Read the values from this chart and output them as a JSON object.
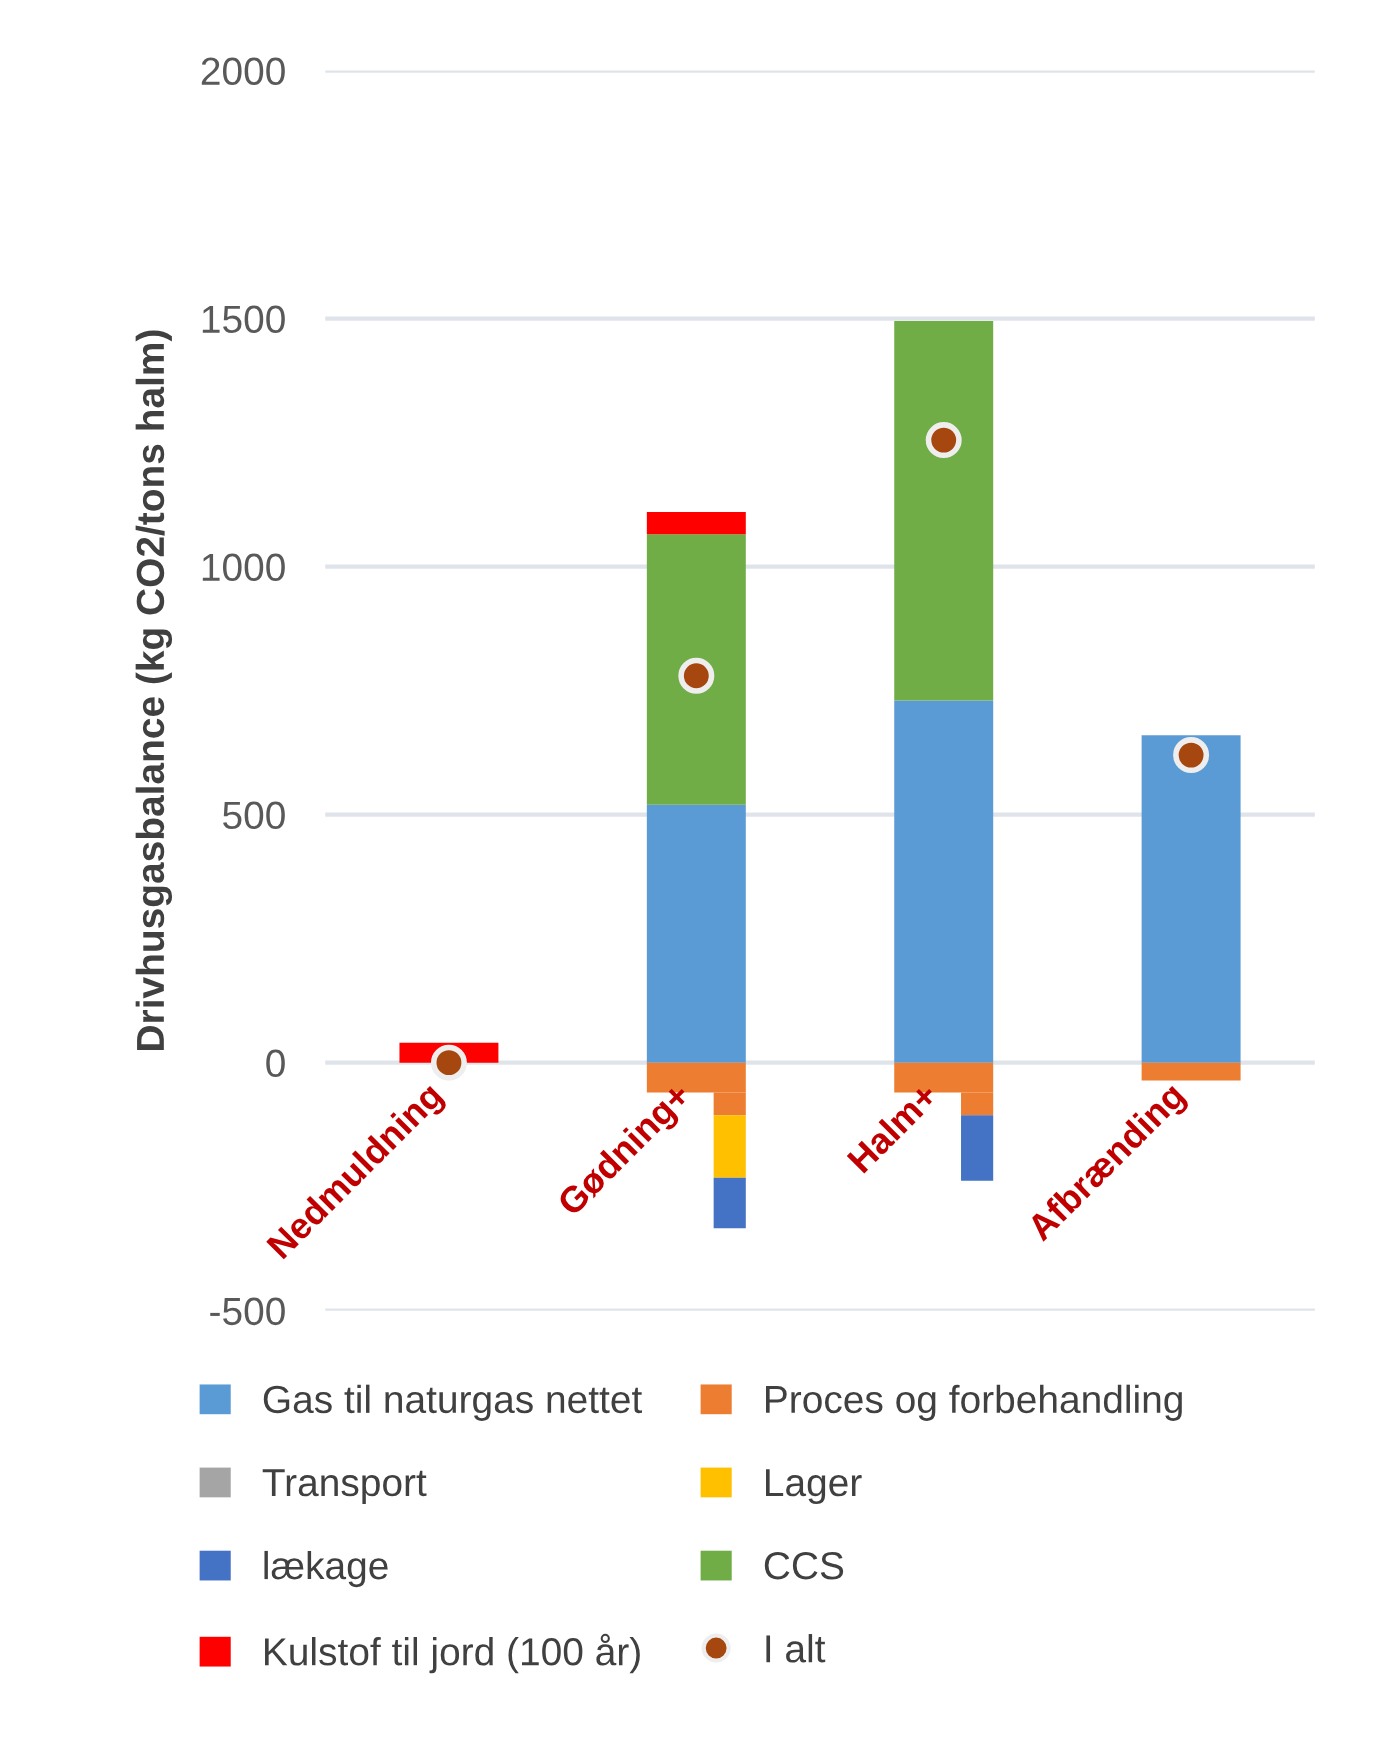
{
  "chart_data": {
    "type": "bar",
    "stacked": true,
    "ylabel": "Drivhusgasbalance (kg CO2/tons halm)",
    "categories": [
      "Nedmuldning",
      "Gødning+",
      "Halm+",
      "Afbrænding"
    ],
    "series": [
      {
        "name": "Gas til naturgas nettet",
        "color": "#5b9bd5",
        "values": [
          null,
          520,
          730,
          660
        ]
      },
      {
        "name": "Proces og forbehandling",
        "color": "#ed7d31",
        "values": [
          null,
          -60,
          -60,
          -36
        ]
      },
      {
        "color": "#ed7d31",
        "values": [
          null,
          -46,
          -46,
          null
        ]
      },
      {
        "name": "Transport",
        "color": "#a5a5a5",
        "values": [
          null,
          null,
          null,
          null
        ]
      },
      {
        "name": "Lager",
        "color": "#ffc000",
        "values": [
          null,
          -126,
          null,
          null
        ]
      },
      {
        "name": "lækage",
        "color": "#4472c4",
        "values": [
          null,
          -102,
          -132,
          null
        ]
      },
      {
        "name": "CCS",
        "color": "#70ad47",
        "values": [
          null,
          545,
          765,
          null
        ]
      },
      {
        "name": "Kulstof til jord (100 år)",
        "color": "#ff0000",
        "values": [
          40,
          45,
          null,
          null
        ]
      },
      {
        "name": "I alt",
        "type": "scatter",
        "color": "#a5470f",
        "values": [
          0,
          780,
          1255,
          620
        ]
      }
    ],
    "ylim": [
      -500,
      2000
    ],
    "yticks": [
      -500,
      0,
      500,
      1000,
      1500,
      2000
    ],
    "grid": "y",
    "legend": "bottom",
    "marker": "circle"
  }
}
